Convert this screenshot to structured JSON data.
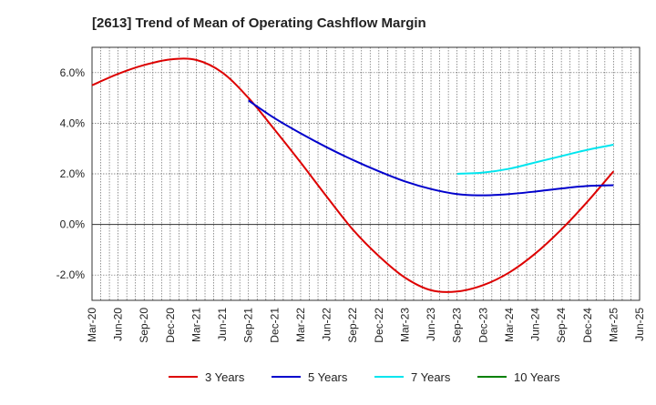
{
  "chart_data": {
    "type": "line",
    "title": "[2613]  Trend of Mean of Operating Cashflow Margin",
    "xlabel": "",
    "ylabel": "",
    "ylim": [
      -3.0,
      7.0
    ],
    "y_ticks": [
      -2.0,
      0.0,
      2.0,
      4.0,
      6.0
    ],
    "y_tick_labels": [
      "-2.0%",
      "0.0%",
      "2.0%",
      "4.0%",
      "6.0%"
    ],
    "grid": true,
    "categories": [
      "Mar-20",
      "Jun-20",
      "Sep-20",
      "Dec-20",
      "Mar-21",
      "Jun-21",
      "Sep-21",
      "Dec-21",
      "Mar-22",
      "Jun-22",
      "Sep-22",
      "Dec-22",
      "Mar-23",
      "Jun-23",
      "Sep-23",
      "Dec-23",
      "Mar-24",
      "Jun-24",
      "Sep-24",
      "Dec-24",
      "Mar-25",
      "Jun-25"
    ],
    "series": [
      {
        "name": "3 Years",
        "color": "#dd0000",
        "values": [
          5.5,
          5.95,
          6.3,
          6.52,
          6.5,
          6.0,
          5.0,
          3.75,
          2.45,
          1.1,
          -0.2,
          -1.25,
          -2.1,
          -2.6,
          -2.65,
          -2.4,
          -1.9,
          -1.15,
          -0.2,
          0.9,
          2.1,
          null
        ]
      },
      {
        "name": "5 Years",
        "color": "#0000cc",
        "values": [
          null,
          null,
          null,
          null,
          null,
          null,
          4.9,
          4.2,
          3.6,
          3.05,
          2.55,
          2.1,
          1.7,
          1.4,
          1.2,
          1.15,
          1.2,
          1.3,
          1.42,
          1.52,
          1.55,
          null
        ]
      },
      {
        "name": "7 Years",
        "color": "#00e5ee",
        "values": [
          null,
          null,
          null,
          null,
          null,
          null,
          null,
          null,
          null,
          null,
          null,
          null,
          null,
          null,
          2.0,
          2.05,
          2.2,
          2.45,
          2.7,
          2.95,
          3.15,
          null
        ]
      },
      {
        "name": "10 Years",
        "color": "#008000",
        "values": [
          null,
          null,
          null,
          null,
          null,
          null,
          null,
          null,
          null,
          null,
          null,
          null,
          null,
          null,
          null,
          null,
          null,
          null,
          null,
          null,
          null,
          null
        ]
      }
    ],
    "legend_position": "bottom"
  }
}
